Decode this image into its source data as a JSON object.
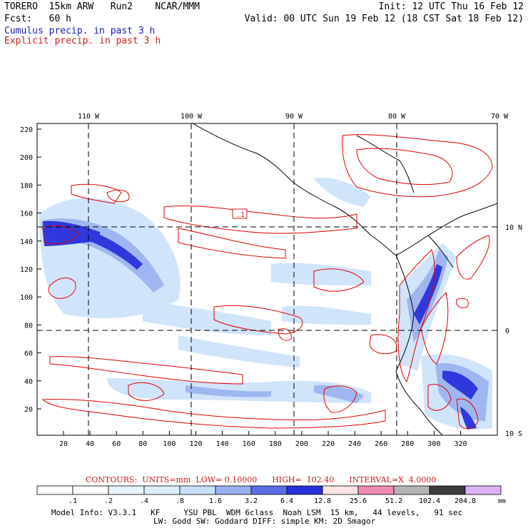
{
  "header": {
    "line1_left": "TORERO  15km ARW   Run2    NCAR/MMM",
    "line1_right": "Init: 12 UTC Thu 16 Feb 12",
    "line2_left": "Fcst:   60 h",
    "line2_right": "Valid: 00 UTC Sun 19 Feb 12 (18 CST Sat 18 Feb 12)",
    "legend_cumulus": "Cumulus precip. in past 3 h",
    "legend_explicit": "Explicit precip. in past 3 h"
  },
  "map": {
    "top_lon_labels": [
      "110 W",
      "100 W",
      "90 W",
      "80 W",
      "70 W"
    ],
    "right_lat_labels": [
      "10 N",
      "0",
      "10 S"
    ],
    "left_ticks": [
      "220",
      "200",
      "180",
      "160",
      "140",
      "120",
      "100",
      "80",
      "60",
      "40",
      "20"
    ],
    "bottom_ticks": [
      "20",
      "40",
      "60",
      "80",
      "100",
      "120",
      "140",
      "160",
      "180",
      "200",
      "220",
      "240",
      "260",
      "280",
      "300",
      "320"
    ],
    "contour_label": ".1"
  },
  "contours_info": {
    "label": "CONTOURS:  UNITS=mm  LOW= 0.10000      HIGH=  102.40      INTERVAL=X  4.0000"
  },
  "colorbar": {
    "unit": "mm",
    "labels": [
      ".1",
      ".2",
      ".4",
      ".8",
      "1.6",
      "3.2",
      "6.4",
      "12.8",
      "25.6",
      "51.2",
      "102.4",
      "204.8"
    ],
    "colors": [
      "#ffffff",
      "#ffffff",
      "#e8f4ff",
      "#dcefff",
      "#c8e0fa",
      "#9ab0f0",
      "#5a6ee6",
      "#2832dc",
      "#ffe4e6",
      "#f08cb4",
      "#b4b4b4",
      "#3c3c3c",
      "#dcb4f5"
    ]
  },
  "model_info": {
    "line1": "Model Info: V3.3.1   KF     YSU PBL  WDM 6class  Noah LSM  15 km,   44 levels,   91 sec",
    "line2": "LW: Godd SW: Goddard DIFF: simple KM: 2D Smagor"
  },
  "colors": {
    "cumulus": "#1a1ab4",
    "explicit": "#d21e1e",
    "contour": "#e60000",
    "precip_light": "#c8e0fa",
    "precip_mid": "#9ab0f0",
    "precip_heavy": "#2832dc"
  }
}
